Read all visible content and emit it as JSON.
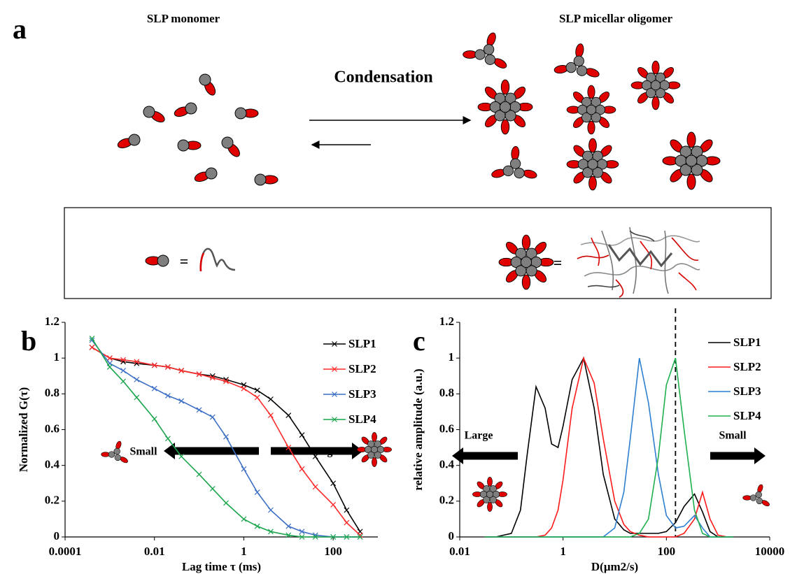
{
  "panel_a": {
    "label": "a",
    "monomer_title": "SLP monomer",
    "oligomer_title": "SLP micellar oligomer",
    "arrow_label": "Condensation",
    "key": {
      "monomer_equals": "=",
      "oligomer_equals": "="
    }
  },
  "chart_data": [
    {
      "type": "line",
      "panel_label": "b",
      "x_label": "Lag time τ (ms)",
      "y_label": "Normalized G(τ)",
      "xscale": "log",
      "x": [
        0.0004,
        0.001,
        0.002,
        0.004,
        0.01,
        0.02,
        0.04,
        0.1,
        0.2,
        0.4,
        1,
        2,
        4,
        10,
        20,
        40,
        100,
        200,
        400
      ],
      "xlim": [
        0.0001,
        1000
      ],
      "xticks": [
        0.0001,
        0.01,
        1,
        100
      ],
      "ylim": [
        0,
        1.2
      ],
      "yticks": [
        0,
        0.2,
        0.4,
        0.6,
        0.8,
        1,
        1.2
      ],
      "marker": "x",
      "legend": "upper right",
      "annotations": [
        "Small",
        "Large"
      ],
      "series": [
        {
          "name": "SLP1",
          "color": "#000000",
          "values": [
            1.06,
            1.0,
            0.98,
            0.97,
            0.96,
            0.95,
            0.93,
            0.91,
            0.9,
            0.88,
            0.85,
            0.82,
            0.77,
            0.68,
            0.57,
            0.45,
            0.3,
            0.15,
            0.03
          ]
        },
        {
          "name": "SLP2",
          "color": "#ff2a2a",
          "values": [
            1.06,
            1.0,
            0.99,
            0.98,
            0.96,
            0.95,
            0.93,
            0.91,
            0.89,
            0.87,
            0.83,
            0.78,
            0.68,
            0.5,
            0.38,
            0.28,
            0.18,
            0.08,
            0.01
          ]
        },
        {
          "name": "SLP3",
          "color": "#3d6fc6",
          "values": [
            1.1,
            0.97,
            0.93,
            0.88,
            0.83,
            0.79,
            0.76,
            0.71,
            0.67,
            0.56,
            0.38,
            0.25,
            0.15,
            0.06,
            0.03,
            0.01,
            0,
            0,
            0
          ]
        },
        {
          "name": "SLP4",
          "color": "#1aa64c",
          "values": [
            1.11,
            0.95,
            0.87,
            0.78,
            0.66,
            0.55,
            0.45,
            0.35,
            0.27,
            0.19,
            0.1,
            0.06,
            0.03,
            0.01,
            0,
            0,
            0,
            0,
            0
          ]
        }
      ]
    },
    {
      "type": "line",
      "panel_label": "c",
      "x_label": "D(μm2/s)",
      "y_label": "relative amplitude (a.u.)",
      "xscale": "log",
      "x": [
        0.03,
        0.05,
        0.1,
        0.15,
        0.2,
        0.3,
        0.45,
        0.6,
        0.8,
        1,
        1.5,
        2.5,
        4,
        6,
        10,
        15,
        20,
        30,
        45,
        70,
        100,
        150,
        220,
        350,
        500,
        700,
        1000,
        1500,
        2000
      ],
      "xlim": [
        0.01,
        10000
      ],
      "xticks": [
        0.01,
        1,
        100,
        10000
      ],
      "ylim": [
        0,
        1.2
      ],
      "yticks": [
        0,
        0.2,
        0.4,
        0.6,
        0.8,
        1,
        1.2
      ],
      "vline": 150,
      "legend": "upper right",
      "annotations": [
        "Large",
        "Small"
      ],
      "series": [
        {
          "name": "SLP1",
          "color": "#000000",
          "values": [
            0,
            0,
            0.02,
            0.15,
            0.45,
            0.84,
            0.72,
            0.52,
            0.5,
            0.62,
            0.88,
            1.0,
            0.72,
            0.35,
            0.1,
            0.04,
            0.02,
            0.02,
            0.02,
            0.02,
            0.03,
            0.08,
            0.17,
            0.24,
            0.14,
            0.03,
            0,
            0,
            0
          ]
        },
        {
          "name": "SLP2",
          "color": "#ff1a1a",
          "values": [
            0,
            0,
            0,
            0,
            0,
            0,
            0.01,
            0.05,
            0.15,
            0.32,
            0.72,
            1.0,
            0.86,
            0.55,
            0.2,
            0.07,
            0.03,
            0.01,
            0,
            0,
            0,
            0,
            0.02,
            0.1,
            0.25,
            0.1,
            0.01,
            0,
            0
          ]
        },
        {
          "name": "SLP3",
          "color": "#2f7fd0",
          "values": [
            0,
            0,
            0,
            0,
            0,
            0,
            0,
            0,
            0,
            0,
            0,
            0,
            0,
            0,
            0.05,
            0.25,
            0.55,
            1.0,
            0.75,
            0.35,
            0.12,
            0.05,
            0.06,
            0.12,
            0.05,
            0,
            0,
            0,
            0
          ]
        },
        {
          "name": "SLP4",
          "color": "#1fb04f",
          "values": [
            0,
            0,
            0,
            0,
            0,
            0,
            0,
            0,
            0,
            0,
            0,
            0,
            0,
            0,
            0,
            0,
            0,
            0.02,
            0.1,
            0.45,
            0.85,
            1.0,
            0.6,
            0.15,
            0.02,
            0,
            0,
            0,
            0
          ]
        }
      ]
    }
  ]
}
